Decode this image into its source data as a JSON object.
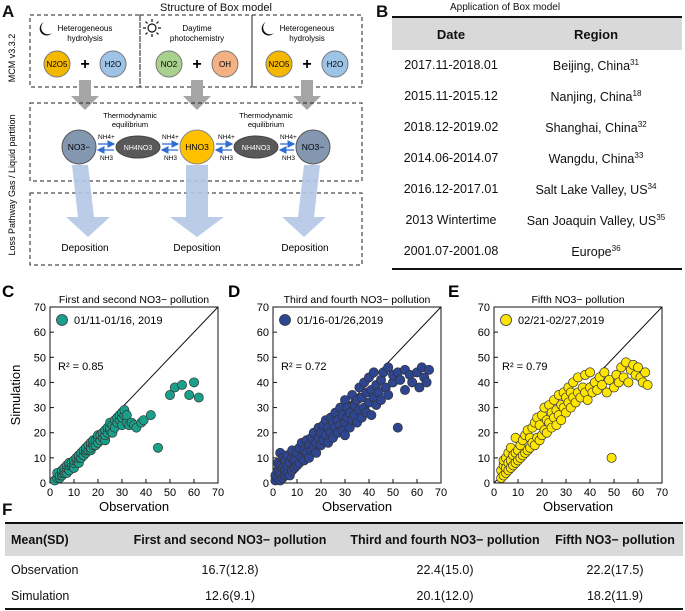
{
  "panel_a": {
    "letter": "A",
    "title": "Structure of Box model",
    "side_label_top": "MCM v3.3.2",
    "side_label_bottom": "Loss Pathway Gas / Liquid partition",
    "boxes": [
      {
        "label_line1": "Heterogeneous",
        "label_line2": "hydrolysis",
        "icon": "moon-icon",
        "reactant1": "N2O5",
        "reactant2": "H2O"
      },
      {
        "label_line1": "Daytime",
        "label_line2": "photochemistry",
        "icon": "sun-icon",
        "reactant1": "NO2",
        "reactant2": "OH"
      },
      {
        "label_line1": "Heterogeneous",
        "label_line2": "hydrolysis",
        "icon": "moon-icon",
        "reactant1": "N2O5",
        "reactant2": "H2O"
      }
    ],
    "equilibrium_line1": "Thermodynamic",
    "equilibrium_line2": "equilibrium",
    "species": {
      "left": "NO3−",
      "center": "HNO3",
      "right": "NO3−",
      "salt": "NH4NO3"
    },
    "nh4": "NH4+",
    "nh3": "NH3",
    "deposition": "Deposition",
    "colors": {
      "n2o5": "#f5b800",
      "h2o": "#9dc3e6",
      "no2": "#a9d18e",
      "oh": "#f4b183",
      "no3": "#8497b0",
      "salt": "#595959",
      "hno3": "#ffc000",
      "arrow_blue": "#b4c7e7",
      "arrow_gray": "#a6a6a6"
    }
  },
  "panel_b": {
    "letter": "B",
    "title": "Application of Box model",
    "headers": [
      "Date",
      "Region"
    ],
    "rows": [
      {
        "date": "2017.11-2018.01",
        "region": "Beijing, China",
        "ref": "31"
      },
      {
        "date": "2015.11-2015.12",
        "region": "Nanjing, China",
        "ref": "18"
      },
      {
        "date": "2018.12-2019.02",
        "region": "Shanghai, China",
        "ref": "32"
      },
      {
        "date": "2014.06-2014.07",
        "region": "Wangdu, China",
        "ref": "33"
      },
      {
        "date": "2016.12-2017.01",
        "region": "Salt Lake Valley, US",
        "ref": "34"
      },
      {
        "date": "2013 Wintertime",
        "region": "San Joaquin Valley, US",
        "ref": "35"
      },
      {
        "date": "2001.07-2001.08",
        "region": "Europe",
        "ref": "36"
      }
    ]
  },
  "chart_data": [
    {
      "type": "scatter",
      "letter": "C",
      "title": "First and second NO3− pollution",
      "legend": "01/11-01/16, 2019",
      "r2": "R² = 0.85",
      "color": "#1aa08a",
      "xlabel": "Observation",
      "ylabel": "Simulation",
      "xlim": [
        0,
        70
      ],
      "ylim": [
        0,
        70
      ],
      "xticks": [
        "0",
        "10",
        "20",
        "30",
        "40",
        "50",
        "60",
        "70"
      ],
      "yticks": [
        "0",
        "10",
        "20",
        "30",
        "40",
        "50",
        "60",
        "70"
      ],
      "points": [
        [
          2,
          1
        ],
        [
          3,
          2
        ],
        [
          3,
          4
        ],
        [
          4,
          2
        ],
        [
          4,
          3
        ],
        [
          5,
          3
        ],
        [
          5,
          4
        ],
        [
          5,
          5
        ],
        [
          6,
          4
        ],
        [
          6,
          5
        ],
        [
          6,
          6
        ],
        [
          7,
          4
        ],
        [
          7,
          6
        ],
        [
          7,
          7
        ],
        [
          8,
          5
        ],
        [
          8,
          7
        ],
        [
          8,
          8
        ],
        [
          9,
          7
        ],
        [
          9,
          8
        ],
        [
          10,
          6
        ],
        [
          10,
          8
        ],
        [
          10,
          9
        ],
        [
          11,
          9
        ],
        [
          11,
          10
        ],
        [
          12,
          8
        ],
        [
          12,
          10
        ],
        [
          12,
          11
        ],
        [
          13,
          10
        ],
        [
          13,
          12
        ],
        [
          14,
          11
        ],
        [
          14,
          13
        ],
        [
          15,
          12
        ],
        [
          15,
          13
        ],
        [
          15,
          14
        ],
        [
          16,
          13
        ],
        [
          16,
          15
        ],
        [
          17,
          13
        ],
        [
          17,
          14
        ],
        [
          17,
          16
        ],
        [
          18,
          15
        ],
        [
          18,
          16
        ],
        [
          18,
          17
        ],
        [
          19,
          15
        ],
        [
          19,
          17
        ],
        [
          20,
          16
        ],
        [
          20,
          18
        ],
        [
          20,
          19
        ],
        [
          21,
          17
        ],
        [
          21,
          19
        ],
        [
          22,
          18
        ],
        [
          22,
          20
        ],
        [
          23,
          17
        ],
        [
          23,
          19
        ],
        [
          23,
          21
        ],
        [
          24,
          20
        ],
        [
          24,
          22
        ],
        [
          25,
          21
        ],
        [
          25,
          22
        ],
        [
          25,
          24
        ],
        [
          26,
          20
        ],
        [
          26,
          23
        ],
        [
          27,
          22
        ],
        [
          27,
          25
        ],
        [
          28,
          24
        ],
        [
          28,
          26
        ],
        [
          29,
          25
        ],
        [
          29,
          27
        ],
        [
          30,
          23
        ],
        [
          30,
          26
        ],
        [
          30,
          28
        ],
        [
          31,
          27
        ],
        [
          31,
          29
        ],
        [
          32,
          24
        ],
        [
          32,
          27
        ],
        [
          33,
          23
        ],
        [
          34,
          24
        ],
        [
          35,
          23
        ],
        [
          36,
          22
        ],
        [
          38,
          24
        ],
        [
          39,
          25
        ],
        [
          42,
          27
        ],
        [
          45,
          14
        ],
        [
          50,
          35
        ],
        [
          52,
          38
        ],
        [
          55,
          39
        ],
        [
          58,
          35
        ],
        [
          60,
          40
        ],
        [
          62,
          34
        ]
      ]
    },
    {
      "type": "scatter",
      "letter": "D",
      "title": "Third and fourth NO3− pollution",
      "legend": "01/16-01/26,2019",
      "r2": "R² = 0.72",
      "color": "#2e4591",
      "xlabel": "Observation",
      "ylabel": "",
      "xlim": [
        0,
        70
      ],
      "ylim": [
        0,
        70
      ],
      "xticks": [
        "0",
        "10",
        "20",
        "30",
        "40",
        "50",
        "60",
        "70"
      ],
      "yticks": [
        "0",
        "10",
        "20",
        "30",
        "40",
        "50",
        "60",
        "70"
      ],
      "points": [
        [
          1,
          1
        ],
        [
          1,
          3
        ],
        [
          2,
          2
        ],
        [
          2,
          5
        ],
        [
          2,
          8
        ],
        [
          3,
          1
        ],
        [
          3,
          4
        ],
        [
          3,
          7
        ],
        [
          3,
          12
        ],
        [
          4,
          2
        ],
        [
          4,
          6
        ],
        [
          4,
          10
        ],
        [
          5,
          3
        ],
        [
          5,
          5
        ],
        [
          5,
          9
        ],
        [
          6,
          4
        ],
        [
          6,
          7
        ],
        [
          6,
          11
        ],
        [
          7,
          3
        ],
        [
          7,
          8
        ],
        [
          8,
          5
        ],
        [
          8,
          10
        ],
        [
          8,
          13
        ],
        [
          9,
          6
        ],
        [
          9,
          9
        ],
        [
          10,
          7
        ],
        [
          10,
          12
        ],
        [
          11,
          8
        ],
        [
          11,
          14
        ],
        [
          12,
          10
        ],
        [
          12,
          16
        ],
        [
          13,
          9
        ],
        [
          13,
          13
        ],
        [
          14,
          12
        ],
        [
          14,
          17
        ],
        [
          15,
          10
        ],
        [
          15,
          15
        ],
        [
          16,
          13
        ],
        [
          16,
          18
        ],
        [
          17,
          14
        ],
        [
          17,
          20
        ],
        [
          18,
          12
        ],
        [
          18,
          16
        ],
        [
          19,
          18
        ],
        [
          19,
          22
        ],
        [
          20,
          15
        ],
        [
          20,
          20
        ],
        [
          21,
          17
        ],
        [
          21,
          23
        ],
        [
          22,
          19
        ],
        [
          22,
          25
        ],
        [
          23,
          16
        ],
        [
          23,
          22
        ],
        [
          24,
          20
        ],
        [
          24,
          26
        ],
        [
          25,
          18
        ],
        [
          25,
          24
        ],
        [
          26,
          22
        ],
        [
          26,
          28
        ],
        [
          27,
          20
        ],
        [
          27,
          25
        ],
        [
          28,
          23
        ],
        [
          28,
          30
        ],
        [
          29,
          21
        ],
        [
          29,
          27
        ],
        [
          30,
          19
        ],
        [
          30,
          24
        ],
        [
          30,
          33
        ],
        [
          31,
          26
        ],
        [
          31,
          30
        ],
        [
          32,
          22
        ],
        [
          32,
          28
        ],
        [
          33,
          25
        ],
        [
          33,
          35
        ],
        [
          34,
          27
        ],
        [
          34,
          31
        ],
        [
          35,
          24
        ],
        [
          35,
          33
        ],
        [
          36,
          29
        ],
        [
          36,
          38
        ],
        [
          37,
          26
        ],
        [
          37,
          34
        ],
        [
          38,
          30
        ],
        [
          38,
          40
        ],
        [
          39,
          28
        ],
        [
          39,
          36
        ],
        [
          40,
          32
        ],
        [
          40,
          42
        ],
        [
          41,
          27
        ],
        [
          41,
          37
        ],
        [
          42,
          34
        ],
        [
          42,
          44
        ],
        [
          43,
          31
        ],
        [
          43,
          39
        ],
        [
          44,
          36
        ],
        [
          45,
          33
        ],
        [
          45,
          41
        ],
        [
          46,
          44
        ],
        [
          47,
          38
        ],
        [
          48,
          35
        ],
        [
          48,
          46
        ],
        [
          50,
          40
        ],
        [
          50,
          43
        ],
        [
          52,
          22
        ],
        [
          52,
          44
        ],
        [
          53,
          41
        ],
        [
          55,
          37
        ],
        [
          55,
          45
        ],
        [
          57,
          43
        ],
        [
          58,
          40
        ],
        [
          60,
          44
        ],
        [
          61,
          38
        ],
        [
          62,
          46
        ],
        [
          63,
          42
        ],
        [
          64,
          40
        ],
        [
          65,
          45
        ]
      ]
    },
    {
      "type": "scatter",
      "letter": "E",
      "title": "Fifth NO3− pollution",
      "legend": "02/21-02/27,2019",
      "r2": "R² = 0.79",
      "color": "#ffe600",
      "xlabel": "Observation",
      "ylabel": "",
      "xlim": [
        0,
        70
      ],
      "ylim": [
        0,
        70
      ],
      "xticks": [
        "0",
        "10",
        "20",
        "30",
        "40",
        "50",
        "60",
        "70"
      ],
      "yticks": [
        "0",
        "10",
        "20",
        "30",
        "40",
        "50",
        "60",
        "70"
      ],
      "points": [
        [
          3,
          2
        ],
        [
          3,
          5
        ],
        [
          4,
          3
        ],
        [
          4,
          7
        ],
        [
          4,
          9
        ],
        [
          5,
          4
        ],
        [
          5,
          6
        ],
        [
          5,
          10
        ],
        [
          6,
          5
        ],
        [
          6,
          8
        ],
        [
          6,
          12
        ],
        [
          7,
          6
        ],
        [
          7,
          9
        ],
        [
          7,
          14
        ],
        [
          8,
          7
        ],
        [
          8,
          11
        ],
        [
          9,
          8
        ],
        [
          9,
          12
        ],
        [
          9,
          18
        ],
        [
          10,
          9
        ],
        [
          10,
          13
        ],
        [
          11,
          10
        ],
        [
          11,
          15
        ],
        [
          12,
          11
        ],
        [
          12,
          17
        ],
        [
          13,
          12
        ],
        [
          13,
          19
        ],
        [
          14,
          13
        ],
        [
          14,
          21
        ],
        [
          15,
          14
        ],
        [
          15,
          18
        ],
        [
          16,
          16
        ],
        [
          16,
          22
        ],
        [
          17,
          15
        ],
        [
          17,
          24
        ],
        [
          18,
          18
        ],
        [
          18,
          26
        ],
        [
          19,
          17
        ],
        [
          19,
          23
        ],
        [
          20,
          19
        ],
        [
          20,
          27
        ],
        [
          21,
          21
        ],
        [
          21,
          30
        ],
        [
          22,
          20
        ],
        [
          22,
          25
        ],
        [
          23,
          24
        ],
        [
          23,
          31
        ],
        [
          24,
          22
        ],
        [
          24,
          28
        ],
        [
          25,
          26
        ],
        [
          25,
          33
        ],
        [
          26,
          23
        ],
        [
          26,
          29
        ],
        [
          27,
          27
        ],
        [
          27,
          35
        ],
        [
          28,
          25
        ],
        [
          28,
          31
        ],
        [
          29,
          30
        ],
        [
          29,
          36
        ],
        [
          30,
          28
        ],
        [
          30,
          34
        ],
        [
          31,
          32
        ],
        [
          31,
          38
        ],
        [
          32,
          30
        ],
        [
          32,
          36
        ],
        [
          33,
          34
        ],
        [
          33,
          40
        ],
        [
          34,
          32
        ],
        [
          35,
          36
        ],
        [
          35,
          42
        ],
        [
          36,
          34
        ],
        [
          37,
          38
        ],
        [
          38,
          36
        ],
        [
          38,
          43
        ],
        [
          39,
          33
        ],
        [
          40,
          38
        ],
        [
          40,
          44
        ],
        [
          41,
          36
        ],
        [
          42,
          40
        ],
        [
          43,
          37
        ],
        [
          44,
          42
        ],
        [
          45,
          39
        ],
        [
          46,
          44
        ],
        [
          47,
          36
        ],
        [
          48,
          41
        ],
        [
          49,
          10
        ],
        [
          50,
          38
        ],
        [
          51,
          43
        ],
        [
          52,
          40
        ],
        [
          53,
          46
        ],
        [
          54,
          42
        ],
        [
          55,
          48
        ],
        [
          56,
          40
        ],
        [
          57,
          45
        ],
        [
          58,
          47
        ],
        [
          59,
          43
        ],
        [
          60,
          46
        ],
        [
          61,
          42
        ],
        [
          62,
          40
        ],
        [
          63,
          44
        ],
        [
          64,
          39
        ]
      ]
    }
  ],
  "panel_f": {
    "letter": "F",
    "headers": [
      "Mean(SD)",
      "First and second NO3− pollution",
      "Third and fourth NO3− pollution",
      "Fifth NO3− pollution"
    ],
    "rows": [
      {
        "label": "Observation",
        "v1": "16.7(12.8)",
        "v2": "22.4(15.0)",
        "v3": "22.2(17.5)"
      },
      {
        "label": "Simulation",
        "v1": "12.6(9.1)",
        "v2": "20.1(12.0)",
        "v3": "18.2(11.9)"
      }
    ]
  }
}
